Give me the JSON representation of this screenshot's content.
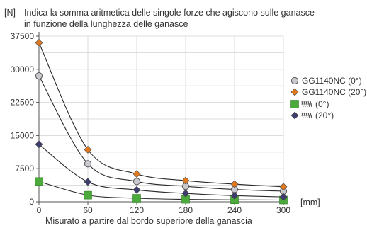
{
  "chart_data": {
    "type": "scatter",
    "title": "Indica la somma aritmetica delle singole forze che agiscono sulle ganasce",
    "subtitle": "in funzione della lunghezza delle ganasce",
    "xlabel": "Misurato a partire dal bordo superiore della ganascia",
    "xunit": "[mm]",
    "yunit": "[N]",
    "x": [
      0,
      60,
      120,
      180,
      240,
      300
    ],
    "x_ticks": [
      "0",
      "60",
      "120",
      "180",
      "240",
      "300"
    ],
    "y_ticks": [
      "0",
      "7500",
      "15000",
      "22500",
      "30000",
      "37500"
    ],
    "xlim": [
      0,
      300
    ],
    "ylim": [
      0,
      37500
    ],
    "grid": true,
    "legend_position": "right",
    "series": [
      {
        "name": "GG1140NC (0°)",
        "marker": "circle",
        "color": "#c9c9cf",
        "values": [
          28500,
          8600,
          4600,
          3500,
          2800,
          2400
        ]
      },
      {
        "name": "GG1140NC (20°)",
        "marker": "diamond",
        "color": "#e0781e",
        "values": [
          36000,
          11800,
          6300,
          4800,
          4000,
          3400
        ]
      },
      {
        "name": "(0°)",
        "marker": "square",
        "color": "#4caa3c",
        "values": [
          4600,
          1500,
          800,
          550,
          450,
          400
        ]
      },
      {
        "name": "(20°)",
        "marker": "diamond",
        "color": "#3c3c6e",
        "values": [
          13000,
          4500,
          2700,
          1900,
          1400,
          1100
        ]
      }
    ]
  }
}
